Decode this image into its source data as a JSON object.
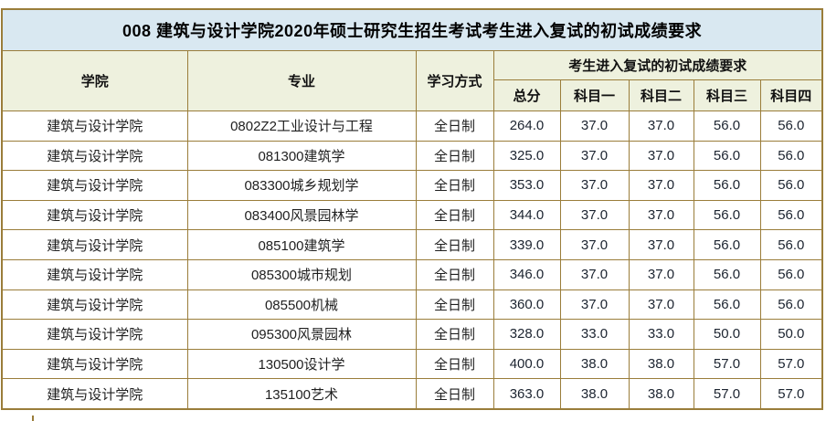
{
  "title": "008 建筑与设计学院2020年硕士研究生招生考试考生进入复试的初试成绩要求",
  "colors": {
    "title_bg": "#d9e8f1",
    "header_bg": "#eef1de",
    "border": "#9a7d3a",
    "row_bg": "#ffffff",
    "text": "#1f1f1f"
  },
  "table": {
    "headers": {
      "college": "学院",
      "major": "专业",
      "study_mode": "学习方式",
      "score_group": "考生进入复试的初试成绩要求",
      "total": "总分",
      "subject1": "科目一",
      "subject2": "科目二",
      "subject3": "科目三",
      "subject4": "科目四"
    },
    "rows": [
      {
        "college": "建筑与设计学院",
        "major": "0802Z2工业设计与工程",
        "study_mode": "全日制",
        "total": "264.0",
        "subject1": "37.0",
        "subject2": "37.0",
        "subject3": "56.0",
        "subject4": "56.0"
      },
      {
        "college": "建筑与设计学院",
        "major": "081300建筑学",
        "study_mode": "全日制",
        "total": "325.0",
        "subject1": "37.0",
        "subject2": "37.0",
        "subject3": "56.0",
        "subject4": "56.0"
      },
      {
        "college": "建筑与设计学院",
        "major": "083300城乡规划学",
        "study_mode": "全日制",
        "total": "353.0",
        "subject1": "37.0",
        "subject2": "37.0",
        "subject3": "56.0",
        "subject4": "56.0"
      },
      {
        "college": "建筑与设计学院",
        "major": "083400风景园林学",
        "study_mode": "全日制",
        "total": "344.0",
        "subject1": "37.0",
        "subject2": "37.0",
        "subject3": "56.0",
        "subject4": "56.0"
      },
      {
        "college": "建筑与设计学院",
        "major": "085100建筑学",
        "study_mode": "全日制",
        "total": "339.0",
        "subject1": "37.0",
        "subject2": "37.0",
        "subject3": "56.0",
        "subject4": "56.0"
      },
      {
        "college": "建筑与设计学院",
        "major": "085300城市规划",
        "study_mode": "全日制",
        "total": "346.0",
        "subject1": "37.0",
        "subject2": "37.0",
        "subject3": "56.0",
        "subject4": "56.0"
      },
      {
        "college": "建筑与设计学院",
        "major": "085500机械",
        "study_mode": "全日制",
        "total": "360.0",
        "subject1": "37.0",
        "subject2": "37.0",
        "subject3": "56.0",
        "subject4": "56.0"
      },
      {
        "college": "建筑与设计学院",
        "major": "095300风景园林",
        "study_mode": "全日制",
        "total": "328.0",
        "subject1": "33.0",
        "subject2": "33.0",
        "subject3": "50.0",
        "subject4": "50.0"
      },
      {
        "college": "建筑与设计学院",
        "major": "130500设计学",
        "study_mode": "全日制",
        "total": "400.0",
        "subject1": "38.0",
        "subject2": "38.0",
        "subject3": "57.0",
        "subject4": "57.0"
      },
      {
        "college": "建筑与设计学院",
        "major": "135100艺术",
        "study_mode": "全日制",
        "total": "363.0",
        "subject1": "38.0",
        "subject2": "38.0",
        "subject3": "57.0",
        "subject4": "57.0"
      }
    ]
  }
}
